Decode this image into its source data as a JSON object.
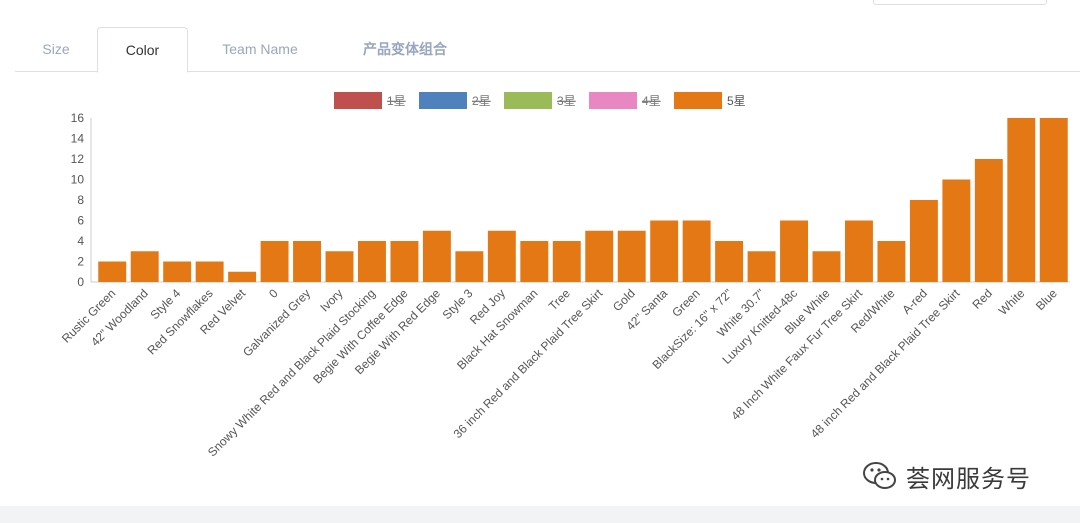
{
  "tabs": [
    {
      "label": "Size",
      "active": false
    },
    {
      "label": "Color",
      "active": true
    },
    {
      "label": "Team Name",
      "active": false
    },
    {
      "label": "产品变体组合",
      "active": false
    }
  ],
  "watermark": {
    "text": "荟网服务号",
    "icon": "wechat-icon"
  },
  "colors": {
    "bar": "#e37814",
    "axis_text": "#555555",
    "tab_inactive": "#98a6be"
  },
  "chart_data": {
    "type": "bar",
    "legend_position": "top",
    "legend": [
      {
        "name": "1星",
        "color": "#c0504d",
        "hidden": true
      },
      {
        "name": "2星",
        "color": "#4f81bd",
        "hidden": true
      },
      {
        "name": "3星",
        "color": "#9bbb59",
        "hidden": true
      },
      {
        "name": "4星",
        "color": "#e987c2",
        "hidden": true
      },
      {
        "name": "5星",
        "color": "#e37814",
        "hidden": false
      }
    ],
    "ylim": [
      0,
      16
    ],
    "yticks": [
      0,
      2,
      4,
      6,
      8,
      10,
      12,
      14,
      16
    ],
    "grid": false,
    "categories": [
      "Rustic Green",
      "42\" Woodland",
      "Style 4",
      "Red Snowflakes",
      "Red Velvet",
      "0",
      "Galvanized Grey",
      "Ivory",
      "Snowy White Red and Black Plaid Stocking",
      "Begie With Coffee Edge",
      "Begie With Red Edge",
      "Style 3",
      "Red Joy",
      "Black Hat Snowman",
      "Tree",
      "36 inch Red and Black Plaid Tree Skirt",
      "Gold",
      "42\" Santa",
      "Green",
      "BlackSize: 16\" x 72\"",
      "White 30.7\"",
      "Luxury Knitted-48c",
      "Blue White",
      "48 Inch White Faux Fur Tree Skirt",
      "Red/White",
      "A-red",
      "48 inch Red and Black Plaid Tree Skirt",
      "Red",
      "White",
      "Blue"
    ],
    "series": [
      {
        "name": "5星",
        "values": [
          2,
          3,
          2,
          2,
          1,
          4,
          4,
          3,
          4,
          4,
          5,
          3,
          5,
          4,
          4,
          5,
          5,
          6,
          6,
          4,
          3,
          6,
          3,
          6,
          4,
          8,
          10,
          12,
          16,
          16
        ]
      }
    ]
  }
}
